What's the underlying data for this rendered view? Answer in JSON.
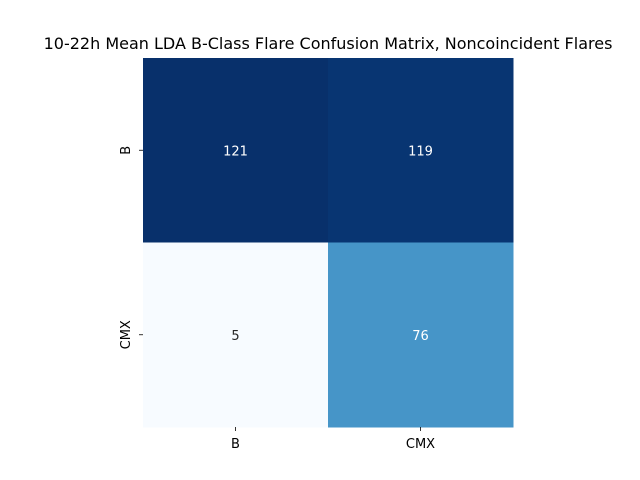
{
  "chart_data": {
    "type": "heatmap",
    "title": "10-22h Mean LDA B-Class Flare Confusion Matrix, Noncoincident Flares",
    "xlabel": "",
    "ylabel": "",
    "x_categories": [
      "B",
      "CMX"
    ],
    "y_categories": [
      "B",
      "CMX"
    ],
    "values": [
      [
        121,
        119
      ],
      [
        5,
        76
      ]
    ],
    "colormap": "Blues",
    "vmin": 5,
    "vmax": 121,
    "colorbar": false
  }
}
